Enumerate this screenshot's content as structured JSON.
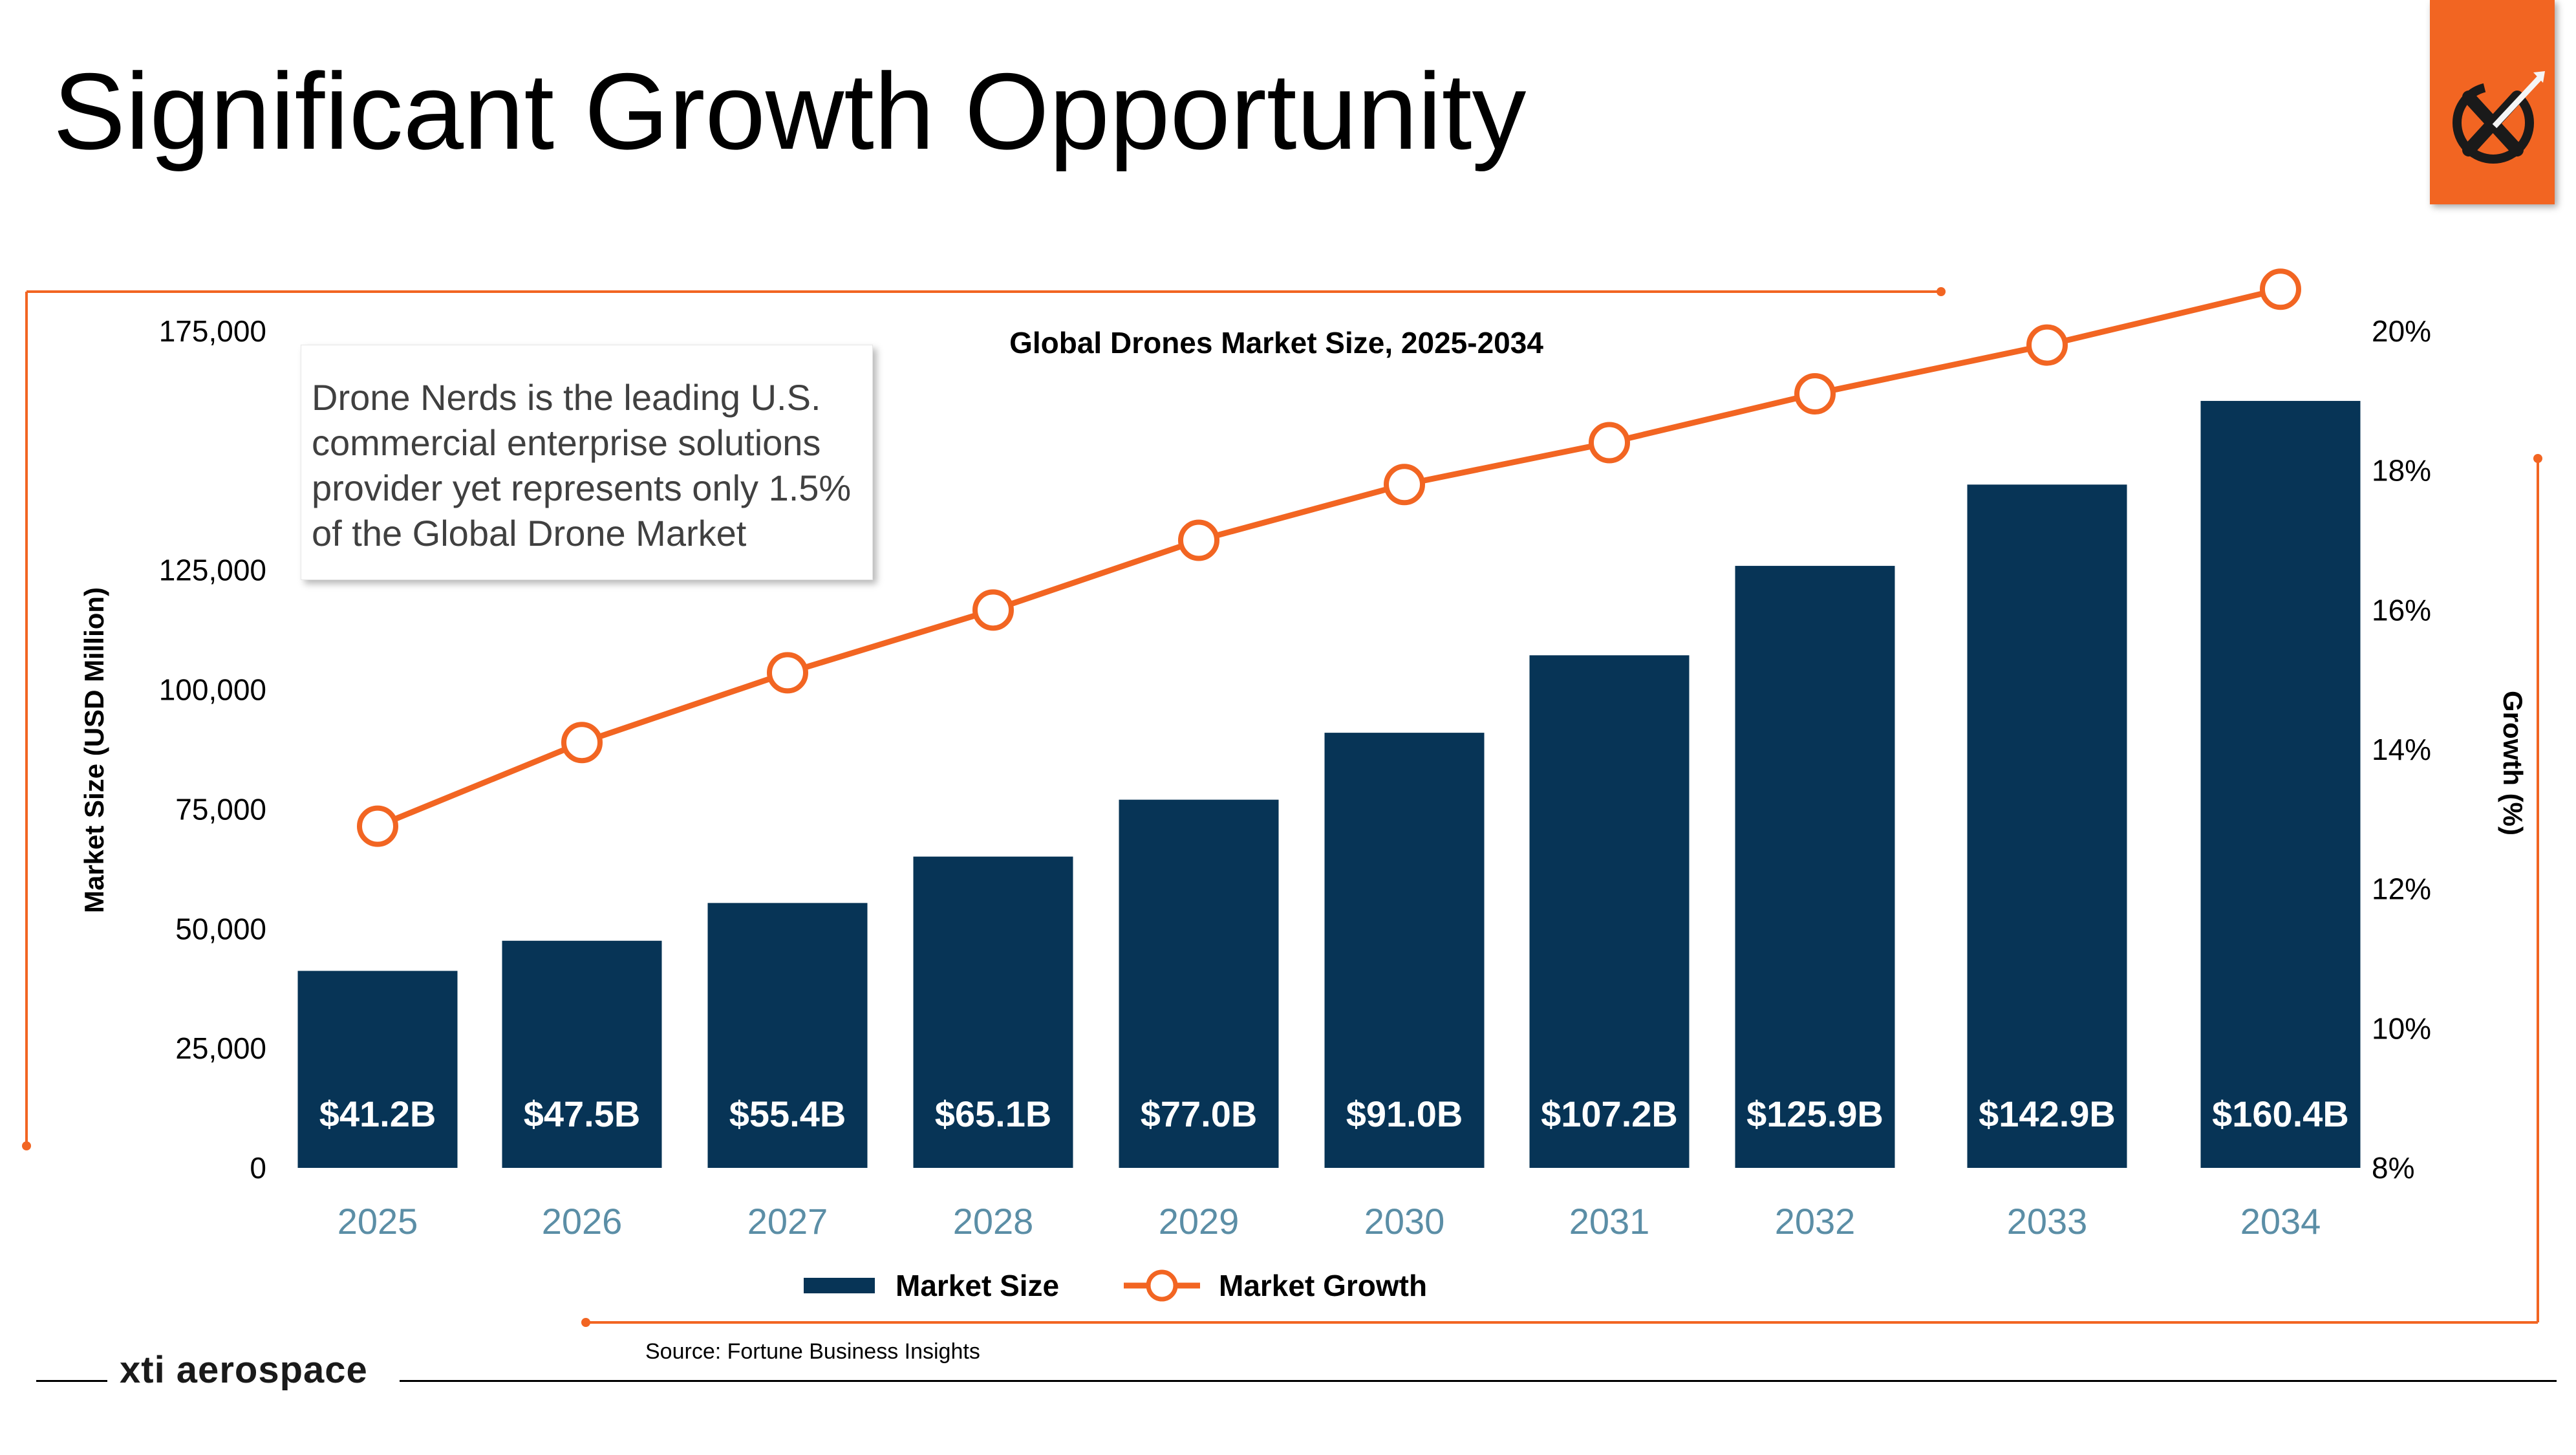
{
  "slide": {
    "title": "Significant Growth Opportunity",
    "callout_lines": [
      "Drone Nerds is the leading U.S.",
      "commercial enterprise solutions",
      "provider yet represents only 1.5%",
      "of the Global Drone Market"
    ],
    "source": "Source: Fortune Business Insights",
    "brand": "xti aerospace",
    "logo_icon": "xti-x-arrow-logo-icon"
  },
  "colors": {
    "bar": "#073456",
    "line": "#f26522",
    "accent_orange": "#f26522",
    "year_label": "#5b8ea6"
  },
  "chart_data": {
    "type": "bar+line",
    "title": "Global Drones Market Size, 2025-2034",
    "categories": [
      "2025",
      "2026",
      "2027",
      "2028",
      "2029",
      "2030",
      "2031",
      "2032",
      "2033",
      "2034"
    ],
    "series": [
      {
        "name": "Market Size",
        "axis": "left",
        "type": "bar",
        "values": [
          41200,
          47500,
          55400,
          65100,
          77000,
          91000,
          107200,
          125900,
          142900,
          160400
        ],
        "labels": [
          "$41.2B",
          "$47.5B",
          "$55.4B",
          "$65.1B",
          "$77.0B",
          "$91.0B",
          "$107.2B",
          "$125.9B",
          "$142.9B",
          "$160.4B"
        ]
      },
      {
        "name": "Market Growth",
        "axis": "right",
        "type": "line",
        "values": [
          12.9,
          14.1,
          15.1,
          16.0,
          17.0,
          17.8,
          18.4,
          19.1,
          19.8,
          20.6
        ]
      }
    ],
    "ylabel_left": "Market Size (USD Million)",
    "ylabel_right": "Growth (%)",
    "ylim_left": [
      0,
      175000
    ],
    "ylim_right": [
      8,
      20
    ],
    "yticks_left": [
      "0",
      "25,000",
      "50,000",
      "75,000",
      "100,000",
      "125,000",
      "175,000"
    ],
    "yticks_left_values": [
      0,
      25000,
      50000,
      75000,
      100000,
      125000,
      175000
    ],
    "yticks_right": [
      "8%",
      "10%",
      "12%",
      "14%",
      "16%",
      "18%",
      "20%"
    ],
    "yticks_right_values": [
      8,
      10,
      12,
      14,
      16,
      18,
      20
    ],
    "legend": [
      "Market Size",
      "Market Growth"
    ],
    "legend_position": "bottom-center",
    "grid": false
  }
}
